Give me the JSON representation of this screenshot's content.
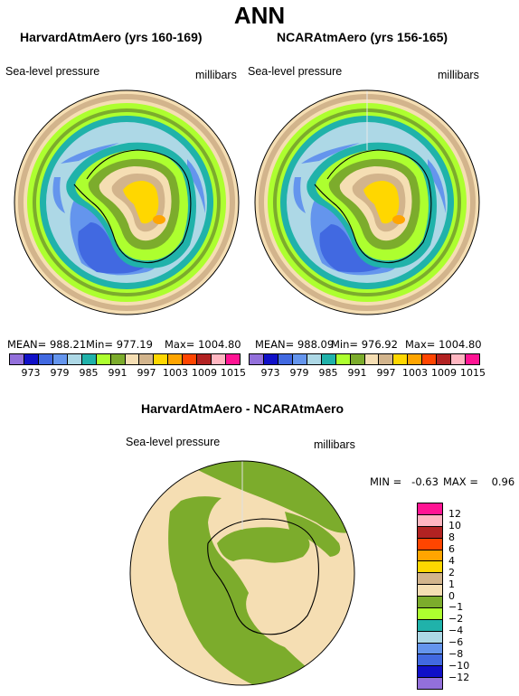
{
  "page_title": "ANN",
  "panel_left": {
    "title": "HarvardAtmAero (yrs 160-169)",
    "variable": "Sea-level pressure",
    "units": "millibars",
    "stats": {
      "mean": "MEAN= 988.21",
      "min": "Min= 977.19",
      "max": "Max= 1004.80"
    }
  },
  "panel_right": {
    "title": "NCARAtmAero (yrs 156-165)",
    "variable": "Sea-level pressure",
    "units": "millibars",
    "stats": {
      "mean": "MEAN= 988.09",
      "min": "Min= 976.92",
      "max": "Max= 1004.80"
    }
  },
  "panel_diff": {
    "title": "HarvardAtmAero - NCARAtmAero",
    "variable": "Sea-level pressure",
    "units": "millibars",
    "stats": {
      "min": "MIN =   -0.63",
      "max": "MAX =    0.96"
    }
  },
  "colorbar_main": {
    "colors": [
      "#9370db",
      "#1010c8",
      "#4169e1",
      "#6495ed",
      "#add8e6",
      "#20b2aa",
      "#adff2f",
      "#7cac2c",
      "#f5deb3",
      "#d2b48c",
      "#ffd700",
      "#ffa500",
      "#ff4500",
      "#b22222",
      "#ffb6c1",
      "#ff1493"
    ],
    "labels": [
      "973",
      "979",
      "985",
      "991",
      "997",
      "1003",
      "1009",
      "1015"
    ]
  },
  "colorbar_diff": {
    "colors": [
      "#9370db",
      "#1010c8",
      "#4169e1",
      "#6495ed",
      "#add8e6",
      "#20b2aa",
      "#adff2f",
      "#7cac2c",
      "#f5deb3",
      "#d2b48c",
      "#ffd700",
      "#ffa500",
      "#ff4500",
      "#b22222",
      "#ffb6c1",
      "#ff1493"
    ],
    "labels": [
      "12",
      "10",
      "8",
      "6",
      "4",
      "2",
      "1",
      "0",
      "−1",
      "−2",
      "−4",
      "−6",
      "−8",
      "−10",
      "−12"
    ]
  },
  "colors": {
    "ocean_light": "#add8e6",
    "teal": "#20b2aa",
    "green": "#7cac2c",
    "lime": "#adff2f",
    "wheat": "#f5deb3",
    "tan": "#d2b48c",
    "gold": "#ffd700",
    "orange": "#ffa500",
    "blue": "#6495ed",
    "royal": "#4169e1"
  }
}
